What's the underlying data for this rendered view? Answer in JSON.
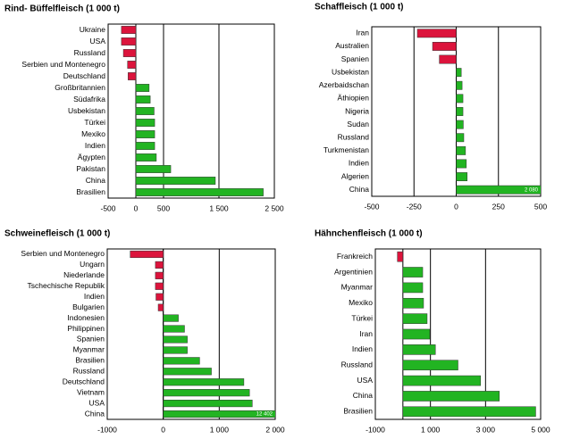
{
  "chart_data": [
    {
      "type": "barh",
      "title": "Rind- Büffelfleisch (1 000 t)",
      "categories": [
        "Ukraine",
        "USA",
        "Russland",
        "Serbien und Montenegro",
        "Deutschland",
        "Großbritannien",
        "Südafrika",
        "Usbekistan",
        "Türkei",
        "Mexiko",
        "Indien",
        "Ägypten",
        "Pakistan",
        "China",
        "Brasilien"
      ],
      "values": [
        -260,
        -260,
        -225,
        -150,
        -140,
        240,
        260,
        330,
        340,
        340,
        340,
        370,
        630,
        1435,
        2300
      ],
      "xlim": [
        -500,
        2500
      ],
      "xticks": [
        -500,
        0,
        500,
        {
          "value": 1500,
          "label": "1 500"
        },
        {
          "value": 2500,
          "label": "2 500"
        }
      ],
      "grid": true,
      "color_positive": "#22b422",
      "color_negative": "#dc143c"
    },
    {
      "type": "barh",
      "title": "Schaffleisch (1 000 t)",
      "categories": [
        "Iran",
        "Australien",
        "Spanien",
        "Usbekistan",
        "Azerbaidschan",
        "Äthiopien",
        "Nigeria",
        "Sudan",
        "Russland",
        "Turkmenistan",
        "Indien",
        "Algerien",
        "China"
      ],
      "values": [
        -230,
        -140,
        -100,
        30,
        35,
        40,
        40,
        42,
        45,
        55,
        60,
        65,
        2080
      ],
      "value_labels": [
        null,
        null,
        null,
        null,
        null,
        null,
        null,
        null,
        null,
        null,
        null,
        null,
        "2 080"
      ],
      "xlim": [
        -500,
        500
      ],
      "xticks": [
        -500,
        -250,
        0,
        250,
        500
      ],
      "grid": true,
      "color_positive": "#22b422",
      "color_negative": "#dc143c"
    },
    {
      "type": "barh",
      "title": "Schweinefleisch (1 000 t)",
      "categories": [
        "Serbien und Montenegro",
        "Ungarn",
        "Niederlande",
        "Tschechische Republik",
        "Indien",
        "Bulgarien",
        "Indonesien",
        "Philippinen",
        "Spanien",
        "Myanmar",
        "Brasilien",
        "Russland",
        "Deutschland",
        "Vietnam",
        "USA",
        "China"
      ],
      "values": [
        -590,
        -140,
        -140,
        -140,
        -130,
        -90,
        270,
        380,
        430,
        430,
        650,
        860,
        1440,
        1540,
        1590,
        12402
      ],
      "value_labels": [
        null,
        null,
        null,
        null,
        null,
        null,
        null,
        null,
        null,
        null,
        null,
        null,
        null,
        null,
        null,
        "12 402"
      ],
      "xlim": [
        -1000,
        2000
      ],
      "xticks": [
        -1000,
        0,
        {
          "value": 1000,
          "label": "1 000"
        },
        {
          "value": 2000,
          "label": "2 000"
        }
      ],
      "grid": true,
      "color_positive": "#22b422",
      "color_negative": "#dc143c"
    },
    {
      "type": "barh",
      "title": "Hähnchenfleisch (1 000 t)",
      "categories": [
        "Frankreich",
        "Argentinien",
        "Myanmar",
        "Mexiko",
        "Türkei",
        "Iran",
        "Indien",
        "Russland",
        "USA",
        "China",
        "Brasilien"
      ],
      "values": [
        -200,
        720,
        720,
        750,
        880,
        980,
        1180,
        2000,
        2820,
        3500,
        4820
      ],
      "xlim": [
        -1000,
        5000
      ],
      "xticks": [
        -1000,
        {
          "value": 1000,
          "label": "1 000"
        },
        {
          "value": 3000,
          "label": "3 000"
        },
        {
          "value": 5000,
          "label": "5 000"
        }
      ],
      "grid": true,
      "color_positive": "#22b422",
      "color_negative": "#dc143c"
    }
  ]
}
